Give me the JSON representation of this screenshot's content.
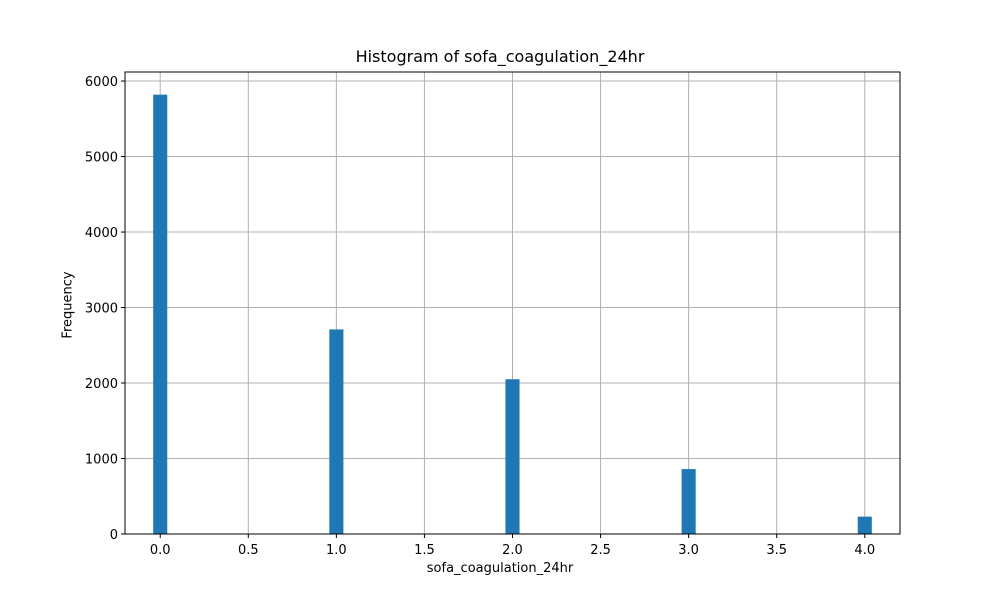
{
  "chart_data": {
    "type": "bar",
    "title": "Histogram of sofa_coagulation_24hr",
    "xlabel": "sofa_coagulation_24hr",
    "ylabel": "Frequency",
    "xlim": [
      -0.2,
      4.2
    ],
    "ylim": [
      0,
      6120
    ],
    "xticks": [
      "0.0",
      "0.5",
      "1.0",
      "1.5",
      "2.0",
      "2.5",
      "3.0",
      "3.5",
      "4.0"
    ],
    "yticks": [
      "0",
      "1000",
      "2000",
      "3000",
      "4000",
      "5000",
      "6000"
    ],
    "grid": true,
    "bar_color": "#1f77b4",
    "bin_width": 0.08,
    "bins": [
      {
        "x": 0.0,
        "value": 5820
      },
      {
        "x": 1.0,
        "value": 2710
      },
      {
        "x": 2.0,
        "value": 2050
      },
      {
        "x": 3.0,
        "value": 860
      },
      {
        "x": 4.0,
        "value": 230
      }
    ]
  }
}
